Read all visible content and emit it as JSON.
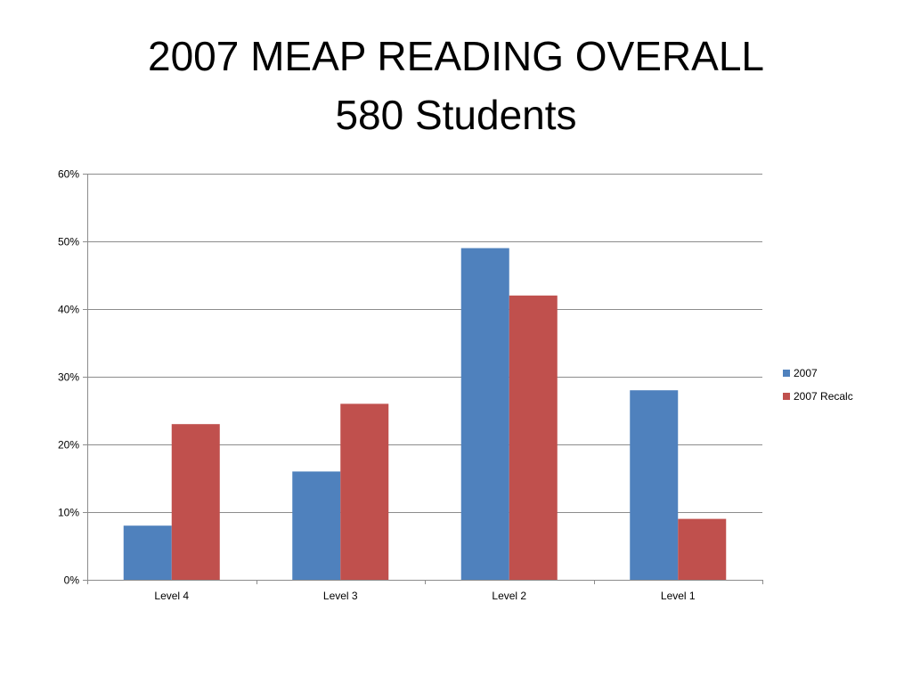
{
  "slide": {
    "title_line1": "2007 MEAP READING OVERALL",
    "title_line2": "580 Students"
  },
  "chart_data": {
    "type": "bar",
    "title": "2007 MEAP READING OVERALL 580 Students",
    "categories": [
      "Level 4",
      "Level 3",
      "Level 2",
      "Level 1"
    ],
    "series": [
      {
        "name": "2007",
        "values": [
          8,
          16,
          49,
          28
        ],
        "color": "#4f81bd"
      },
      {
        "name": "2007 Recalc",
        "values": [
          23,
          26,
          42,
          9
        ],
        "color": "#c0504d"
      }
    ],
    "y_unit": "%",
    "ylim": [
      0,
      60
    ],
    "y_ticks": [
      0,
      10,
      20,
      30,
      40,
      50,
      60
    ],
    "y_tick_labels": [
      "0%",
      "10%",
      "20%",
      "30%",
      "40%",
      "50%",
      "60%"
    ],
    "grid": true,
    "legend_position": "right",
    "xlabel": "",
    "ylabel": ""
  }
}
